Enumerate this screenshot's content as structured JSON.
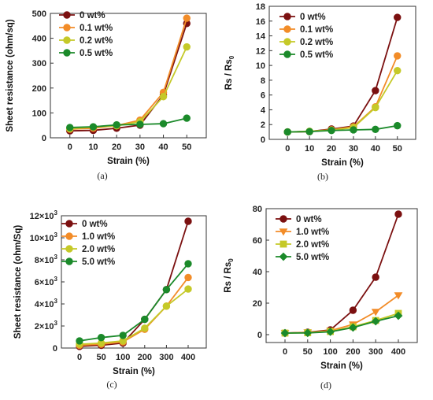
{
  "chart_data": [
    {
      "type": "line",
      "panel_label": "(a)",
      "xlabel": "Strain (%)",
      "ylabel": "Sheet resistance (ohm/sq)",
      "x": [
        0,
        10,
        20,
        30,
        40,
        50
      ],
      "xticks": [
        "0",
        "10",
        "20",
        "30",
        "40",
        "50"
      ],
      "ylim": [
        0,
        520
      ],
      "yticks": [
        "0",
        "100",
        "200",
        "300",
        "400",
        "500"
      ],
      "legend_position": "top-left",
      "series": [
        {
          "name": "0 wt%",
          "color": "#7b1010",
          "marker": "circle",
          "values": [
            29,
            31,
            40,
            53,
            180,
            478
          ]
        },
        {
          "name": "0.1 wt%",
          "color": "#f28c28",
          "marker": "circle",
          "values": [
            36,
            40,
            51,
            74,
            190,
            500
          ]
        },
        {
          "name": "0.2 wt%",
          "color": "#c5c928",
          "marker": "circle",
          "values": [
            38,
            45,
            50,
            67,
            172,
            380
          ]
        },
        {
          "name": "0.5 wt%",
          "color": "#1b8a2a",
          "marker": "circle",
          "values": [
            43,
            46,
            54,
            56,
            59,
            82
          ]
        }
      ]
    },
    {
      "type": "line",
      "panel_label": "(b)",
      "xlabel": "Strain (%)",
      "ylabel": "Rs / Rs",
      "ylabel_sub": "0",
      "x": [
        0,
        10,
        20,
        30,
        40,
        50
      ],
      "xticks": [
        "0",
        "10",
        "20",
        "30",
        "40",
        "50"
      ],
      "ylim": [
        0,
        18
      ],
      "yticks": [
        "0",
        "2",
        "4",
        "6",
        "8",
        "10",
        "12",
        "14",
        "16",
        "18"
      ],
      "legend_position": "top-left",
      "series": [
        {
          "name": "0 wt%",
          "color": "#7b1010",
          "marker": "circle",
          "values": [
            1,
            1.06,
            1.4,
            1.8,
            6.6,
            16.5
          ]
        },
        {
          "name": "0.1 wt%",
          "color": "#f28c28",
          "marker": "circle",
          "values": [
            1,
            1.05,
            1.3,
            1.7,
            4.4,
            11.3
          ]
        },
        {
          "name": "0.2 wt%",
          "color": "#c5c928",
          "marker": "circle",
          "values": [
            1,
            1.1,
            1.25,
            1.6,
            4.3,
            9.3
          ]
        },
        {
          "name": "0.5 wt%",
          "color": "#1b8a2a",
          "marker": "circle",
          "values": [
            1,
            1.05,
            1.2,
            1.28,
            1.35,
            1.85
          ]
        }
      ]
    },
    {
      "type": "line",
      "panel_label": "(c)",
      "xlabel": "Strain (%)",
      "ylabel": "Sheet resistance (ohm/Sq)",
      "x": [
        0,
        50,
        100,
        200,
        300,
        400
      ],
      "xticks": [
        "0",
        "50",
        "100",
        "200",
        "300",
        "400"
      ],
      "ylim": [
        0,
        12000
      ],
      "yticks": [
        {
          "label": "0",
          "exp": ""
        },
        {
          "label": "2×10",
          "exp": "3"
        },
        {
          "label": "4×10",
          "exp": "3"
        },
        {
          "label": "6×10",
          "exp": "3"
        },
        {
          "label": "8×10",
          "exp": "3"
        },
        {
          "label": "10×10",
          "exp": "3"
        },
        {
          "label": "12×10",
          "exp": "3"
        }
      ],
      "legend_position": "top-left",
      "series": [
        {
          "name": "0 wt%",
          "color": "#7b1010",
          "marker": "circle",
          "values": [
            150,
            250,
            450,
            2600,
            5300,
            11500
          ]
        },
        {
          "name": "1.0 wt%",
          "color": "#f28c28",
          "marker": "circle",
          "values": [
            250,
            350,
            550,
            1700,
            3800,
            6400
          ]
        },
        {
          "name": "2.0 wt%",
          "color": "#c5c928",
          "marker": "circle",
          "values": [
            350,
            450,
            650,
            1800,
            3800,
            5350
          ]
        },
        {
          "name": "5.0 wt%",
          "color": "#1b8a2a",
          "marker": "circle",
          "values": [
            650,
            950,
            1150,
            2600,
            5300,
            7650
          ]
        }
      ]
    },
    {
      "type": "line",
      "panel_label": "(d)",
      "xlabel": "Strain (%)",
      "ylabel": "Rs / Rs",
      "ylabel_sub": "0",
      "x": [
        0,
        50,
        100,
        200,
        300,
        400
      ],
      "xticks": [
        "0",
        "50",
        "100",
        "200",
        "300",
        "400"
      ],
      "ylim": [
        -5,
        80
      ],
      "yticks": [
        "0",
        "20",
        "40",
        "60",
        "80"
      ],
      "legend_position": "top-left",
      "series": [
        {
          "name": "0 wt%",
          "color": "#7b1010",
          "marker": "circle",
          "values": [
            1,
            1.5,
            3,
            15.5,
            36.5,
            76.5
          ]
        },
        {
          "name": "1.0 wt%",
          "color": "#f28c28",
          "marker": "triangle-down",
          "values": [
            1,
            1.4,
            2.5,
            6.5,
            14.5,
            25.0
          ]
        },
        {
          "name": "2.0 wt%",
          "color": "#c5c928",
          "marker": "square",
          "values": [
            1,
            1.2,
            2.0,
            5.0,
            9.0,
            13.5
          ]
        },
        {
          "name": "5.0 wt%",
          "color": "#1b8a2a",
          "marker": "diamond",
          "values": [
            1,
            1.1,
            1.8,
            4.5,
            8.5,
            12.0
          ]
        }
      ]
    }
  ]
}
